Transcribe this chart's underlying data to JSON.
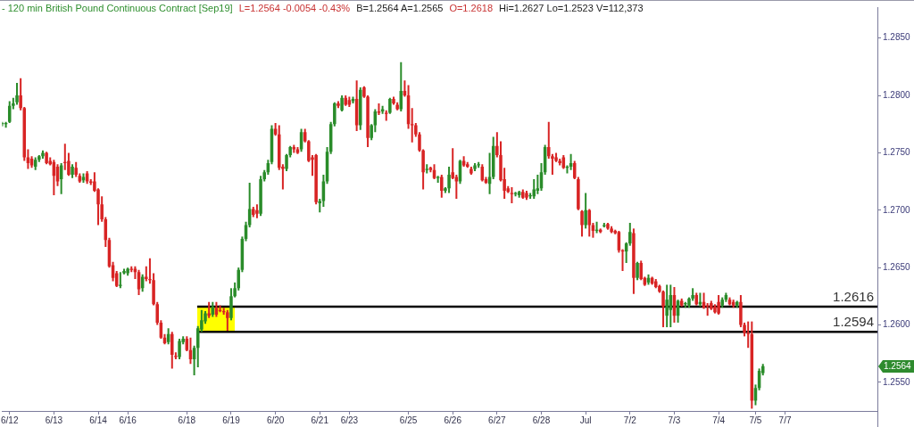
{
  "chart_data": {
    "type": "candlestick",
    "title": "- 120 min British Pound Continuous Contract [Sep19]",
    "annotations": [
      "L=1.2564 -0.0054 -0.43%",
      "B=1.2564 A=1.2565",
      "O=1.2618",
      "Hi=1.2627 Lo=1.2523 V=112,373",
      {
        "text": "1.2564",
        "y": 1.2564
      }
    ],
    "categories": [
      null,
      null,
      "6/12",
      null,
      null,
      null,
      null,
      null,
      null,
      null,
      null,
      null,
      null,
      null,
      "6/13",
      null,
      null,
      null,
      null,
      null,
      null,
      null,
      null,
      null,
      null,
      null,
      "6/14",
      null,
      null,
      null,
      null,
      null,
      null,
      null,
      "6/16",
      null,
      null,
      null,
      null,
      null,
      null,
      null,
      null,
      null,
      null,
      null,
      null,
      null,
      null,
      null,
      "6/18",
      null,
      null,
      null,
      null,
      null,
      null,
      null,
      null,
      null,
      null,
      null,
      "6/19",
      null,
      null,
      null,
      null,
      null,
      null,
      null,
      null,
      null,
      null,
      null,
      "6/20",
      null,
      null,
      null,
      null,
      null,
      null,
      null,
      null,
      null,
      null,
      null,
      "6/21",
      null,
      null,
      null,
      null,
      null,
      null,
      null,
      "6/23",
      null,
      null,
      null,
      null,
      null,
      null,
      null,
      null,
      null,
      null,
      null,
      null,
      null,
      null,
      null,
      "6/25",
      null,
      null,
      null,
      null,
      null,
      null,
      null,
      null,
      null,
      null,
      null,
      "6/26",
      null,
      null,
      null,
      null,
      null,
      null,
      null,
      null,
      null,
      null,
      null,
      "6/27",
      null,
      null,
      null,
      null,
      null,
      null,
      null,
      null,
      null,
      null,
      null,
      "6/28",
      null,
      null,
      null,
      null,
      null,
      null,
      null,
      null,
      null,
      null,
      null,
      "Jul",
      null,
      null,
      null,
      null,
      null,
      null,
      null,
      null,
      null,
      null,
      null,
      "7/2",
      null,
      null,
      null,
      null,
      null,
      null,
      null,
      null,
      null,
      null,
      null,
      "7/3",
      null,
      null,
      null,
      null,
      null,
      null,
      null,
      null,
      null,
      null,
      null,
      "7/4",
      null,
      null,
      null,
      null,
      null,
      null,
      null,
      null,
      null,
      "7/5",
      null,
      null,
      null,
      null,
      null,
      null,
      null,
      "7/7",
      null,
      null,
      null,
      null,
      null,
      null,
      null,
      null,
      null,
      null,
      null,
      null,
      null,
      null,
      null,
      null,
      null,
      null,
      null,
      null,
      null,
      null,
      null,
      null,
      null
    ],
    "ohlc": [
      [
        1.2775,
        1.2777,
        1.2773,
        1.2776
      ],
      [
        1.2775,
        1.2777,
        1.2772,
        1.2776
      ],
      [
        1.2777,
        1.2795,
        1.2776,
        1.2791
      ],
      [
        1.2791,
        1.2798,
        1.2788,
        1.2793
      ],
      [
        1.2794,
        1.2811,
        1.2792,
        1.28
      ],
      [
        1.28,
        1.2815,
        1.2787,
        1.2789
      ],
      [
        1.2789,
        1.279,
        1.2743,
        1.2746
      ],
      [
        1.2746,
        1.2753,
        1.2736,
        1.2741
      ],
      [
        1.2745,
        1.2747,
        1.2737,
        1.2739
      ],
      [
        1.2738,
        1.2746,
        1.2735,
        1.2744
      ],
      [
        1.2744,
        1.2748,
        1.2742,
        1.2747
      ],
      [
        1.2747,
        1.2752,
        1.2745,
        1.275
      ],
      [
        1.275,
        1.2751,
        1.274,
        1.2741
      ],
      [
        1.2743,
        1.2746,
        1.2739,
        1.274
      ],
      [
        1.2742,
        1.2744,
        1.2713,
        1.273
      ],
      [
        1.2738,
        1.274,
        1.2721,
        1.2725
      ],
      [
        1.2727,
        1.2741,
        1.2714,
        1.2739
      ],
      [
        1.2742,
        1.2758,
        1.2735,
        1.2741
      ],
      [
        1.2743,
        1.275,
        1.273,
        1.2731
      ],
      [
        1.2731,
        1.274,
        1.2728,
        1.2738
      ],
      [
        1.2737,
        1.2742,
        1.2729,
        1.2731
      ],
      [
        1.273,
        1.2732,
        1.2724,
        1.2725
      ],
      [
        1.2726,
        1.2732,
        1.2724,
        1.2729
      ],
      [
        1.2732,
        1.2734,
        1.2723,
        1.2725
      ],
      [
        1.2725,
        1.2727,
        1.2722,
        1.2724
      ],
      [
        1.2725,
        1.2733,
        1.2716,
        1.2717
      ],
      [
        1.2718,
        1.2719,
        1.2687,
        1.2705
      ],
      [
        1.2705,
        1.2712,
        1.269,
        1.2692
      ],
      [
        1.2692,
        1.2694,
        1.2668,
        1.2674
      ],
      [
        1.2674,
        1.2676,
        1.265,
        1.2651
      ],
      [
        1.2652,
        1.2655,
        1.2638,
        1.2641
      ],
      [
        1.2645,
        1.2647,
        1.2633,
        1.2634
      ],
      [
        1.2634,
        1.2646,
        1.2632,
        1.2635
      ],
      [
        1.2645,
        1.2649,
        1.2644,
        1.2647
      ],
      [
        1.2645,
        1.265,
        1.2643,
        1.2649
      ],
      [
        1.2649,
        1.2651,
        1.2646,
        1.2648
      ],
      [
        1.2649,
        1.2651,
        1.264,
        1.2646
      ],
      [
        1.2646,
        1.2648,
        1.2626,
        1.2631
      ],
      [
        1.2632,
        1.2644,
        1.2629,
        1.2642
      ],
      [
        1.2642,
        1.2651,
        1.2638,
        1.264
      ],
      [
        1.264,
        1.2658,
        1.2636,
        1.2639
      ],
      [
        1.2639,
        1.2645,
        1.2617,
        1.2618
      ],
      [
        1.2618,
        1.262,
        1.26,
        1.2602
      ],
      [
        1.2602,
        1.2604,
        1.2588,
        1.2589
      ],
      [
        1.2589,
        1.2592,
        1.2583,
        1.2584
      ],
      [
        1.2585,
        1.2597,
        1.2583,
        1.2592
      ],
      [
        1.2592,
        1.2594,
        1.2562,
        1.2574
      ],
      [
        1.2573,
        1.2576,
        1.257,
        1.2572
      ],
      [
        1.2572,
        1.2588,
        1.257,
        1.2586
      ],
      [
        1.2585,
        1.259,
        1.2583,
        1.2588
      ],
      [
        1.2588,
        1.259,
        1.2577,
        1.2578
      ],
      [
        1.2578,
        1.2589,
        1.2566,
        1.257
      ],
      [
        1.257,
        1.2582,
        1.2556,
        1.258
      ],
      [
        1.258,
        1.2599,
        1.2563,
        1.2597
      ],
      [
        1.2596,
        1.2613,
        1.2594,
        1.2604
      ],
      [
        1.2603,
        1.2612,
        1.2601,
        1.261
      ],
      [
        1.261,
        1.262,
        1.2606,
        1.2608
      ],
      [
        1.2609,
        1.262,
        1.2607,
        1.2616
      ],
      [
        1.2615,
        1.262,
        1.2607,
        1.2609
      ],
      [
        1.2613,
        1.2617,
        1.2611,
        1.2612
      ],
      [
        1.2612,
        1.2615,
        1.2609,
        1.2611
      ],
      [
        1.2611,
        1.2613,
        1.2595,
        1.2606
      ],
      [
        1.2606,
        1.2632,
        1.2604,
        1.2625
      ],
      [
        1.2625,
        1.2637,
        1.2624,
        1.2632
      ],
      [
        1.2632,
        1.265,
        1.263,
        1.2648
      ],
      [
        1.2648,
        1.2677,
        1.2646,
        1.2675
      ],
      [
        1.2675,
        1.269,
        1.2673,
        1.2687
      ],
      [
        1.2687,
        1.2724,
        1.2685,
        1.2701
      ],
      [
        1.2701,
        1.2703,
        1.2694,
        1.2696
      ],
      [
        1.27,
        1.2705,
        1.2693,
        1.2697
      ],
      [
        1.2697,
        1.273,
        1.2695,
        1.2727
      ],
      [
        1.2727,
        1.2735,
        1.2725,
        1.2733
      ],
      [
        1.2733,
        1.2744,
        1.2731,
        1.2741
      ],
      [
        1.2742,
        1.2774,
        1.274,
        1.2771
      ],
      [
        1.2771,
        1.2776,
        1.2765,
        1.2766
      ],
      [
        1.2766,
        1.2774,
        1.2735,
        1.2737
      ],
      [
        1.2738,
        1.274,
        1.2718,
        1.2736
      ],
      [
        1.2736,
        1.2749,
        1.2734,
        1.2748
      ],
      [
        1.2748,
        1.2756,
        1.2746,
        1.2755
      ],
      [
        1.2755,
        1.2757,
        1.275,
        1.2753
      ],
      [
        1.2753,
        1.2755,
        1.2749,
        1.275
      ],
      [
        1.2753,
        1.2771,
        1.2751,
        1.2768
      ],
      [
        1.2768,
        1.2771,
        1.2759,
        1.276
      ],
      [
        1.276,
        1.2761,
        1.2742,
        1.2743
      ],
      [
        1.2746,
        1.2748,
        1.273,
        1.2744
      ],
      [
        1.2748,
        1.2749,
        1.2705,
        1.2707
      ],
      [
        1.2706,
        1.271,
        1.2698,
        1.2708
      ],
      [
        1.2708,
        1.2731,
        1.2703,
        1.2725
      ],
      [
        1.2725,
        1.2755,
        1.2723,
        1.2751
      ],
      [
        1.2751,
        1.2777,
        1.2749,
        1.2775
      ],
      [
        1.2775,
        1.2794,
        1.2773,
        1.2793
      ],
      [
        1.2793,
        1.2795,
        1.2789,
        1.2791
      ],
      [
        1.2787,
        1.28,
        1.2786,
        1.2798
      ],
      [
        1.2798,
        1.28,
        1.2791,
        1.2792
      ],
      [
        1.2796,
        1.2799,
        1.279,
        1.2792
      ],
      [
        1.2795,
        1.2799,
        1.2793,
        1.2797
      ],
      [
        1.2797,
        1.2813,
        1.2769,
        1.2774
      ],
      [
        1.2774,
        1.2807,
        1.277,
        1.2805
      ],
      [
        1.2807,
        1.2808,
        1.2798,
        1.2799
      ],
      [
        1.2799,
        1.28,
        1.2755,
        1.2763
      ],
      [
        1.2763,
        1.2775,
        1.2761,
        1.2774
      ],
      [
        1.2774,
        1.2788,
        1.2768,
        1.2786
      ],
      [
        1.2786,
        1.2793,
        1.2783,
        1.2785
      ],
      [
        1.2786,
        1.2791,
        1.2784,
        1.2788
      ],
      [
        1.2785,
        1.2787,
        1.2778,
        1.2784
      ],
      [
        1.2785,
        1.2798,
        1.2784,
        1.2797
      ],
      [
        1.2797,
        1.2799,
        1.2792,
        1.2793
      ],
      [
        1.2792,
        1.2794,
        1.2787,
        1.2788
      ],
      [
        1.2788,
        1.2829,
        1.2786,
        1.2804
      ],
      [
        1.2804,
        1.2813,
        1.2799,
        1.28
      ],
      [
        1.28,
        1.2809,
        1.2771,
        1.2775
      ],
      [
        1.2775,
        1.2789,
        1.2759,
        1.2774
      ],
      [
        1.2774,
        1.2776,
        1.2764,
        1.2766
      ],
      [
        1.2766,
        1.2768,
        1.2751,
        1.2752
      ],
      [
        1.2752,
        1.2753,
        1.2718,
        1.2733
      ],
      [
        1.2735,
        1.274,
        1.2732,
        1.2736
      ],
      [
        1.2737,
        1.2738,
        1.2733,
        1.2735
      ],
      [
        1.2735,
        1.274,
        1.2727,
        1.2728
      ],
      [
        1.2728,
        1.273,
        1.2724,
        1.2729
      ],
      [
        1.2729,
        1.2731,
        1.2711,
        1.2717
      ],
      [
        1.2717,
        1.272,
        1.2715,
        1.2719
      ],
      [
        1.2719,
        1.2738,
        1.2715,
        1.2731
      ],
      [
        1.2733,
        1.2754,
        1.2727,
        1.2728
      ],
      [
        1.2729,
        1.2731,
        1.271,
        1.2725
      ],
      [
        1.2725,
        1.2744,
        1.2723,
        1.2743
      ],
      [
        1.2743,
        1.2747,
        1.2738,
        1.2739
      ],
      [
        1.274,
        1.2742,
        1.2737,
        1.2738
      ],
      [
        1.2736,
        1.2738,
        1.2731,
        1.2732
      ],
      [
        1.2736,
        1.2741,
        1.2734,
        1.2739
      ],
      [
        1.2739,
        1.2742,
        1.2737,
        1.274
      ],
      [
        1.2738,
        1.274,
        1.2725,
        1.2726
      ],
      [
        1.2727,
        1.2729,
        1.2723,
        1.2724
      ],
      [
        1.2723,
        1.275,
        1.2714,
        1.2729
      ],
      [
        1.2729,
        1.2764,
        1.2727,
        1.2756
      ],
      [
        1.2756,
        1.2768,
        1.2746,
        1.2748
      ],
      [
        1.2748,
        1.276,
        1.2725,
        1.2726
      ],
      [
        1.2727,
        1.2737,
        1.271,
        1.2717
      ],
      [
        1.2719,
        1.2721,
        1.2715,
        1.2716
      ],
      [
        1.2715,
        1.272,
        1.2706,
        1.2714
      ],
      [
        1.2714,
        1.2716,
        1.2712,
        1.2715
      ],
      [
        1.2713,
        1.2717,
        1.2711,
        1.2716
      ],
      [
        1.2716,
        1.2718,
        1.271,
        1.2711
      ],
      [
        1.2715,
        1.2717,
        1.2709,
        1.2711
      ],
      [
        1.2712,
        1.2715,
        1.271,
        1.2713
      ],
      [
        1.2712,
        1.2727,
        1.271,
        1.2718
      ],
      [
        1.2717,
        1.2731,
        1.2714,
        1.2719
      ],
      [
        1.2719,
        1.2741,
        1.2717,
        1.2733
      ],
      [
        1.2733,
        1.2757,
        1.2731,
        1.2755
      ],
      [
        1.2755,
        1.2777,
        1.2745,
        1.2747
      ],
      [
        1.2747,
        1.2749,
        1.2731,
        1.2745
      ],
      [
        1.2746,
        1.275,
        1.2742,
        1.2743
      ],
      [
        1.2743,
        1.2745,
        1.2739,
        1.2741
      ],
      [
        1.2746,
        1.2748,
        1.2736,
        1.2737
      ],
      [
        1.2737,
        1.2739,
        1.2732,
        1.2738
      ],
      [
        1.2738,
        1.2749,
        1.2735,
        1.2741
      ],
      [
        1.2741,
        1.2743,
        1.2727,
        1.2728
      ],
      [
        1.2727,
        1.2729,
        1.27,
        1.2701
      ],
      [
        1.2699,
        1.27,
        1.2677,
        1.2687
      ],
      [
        1.2687,
        1.2715,
        1.2684,
        1.27
      ],
      [
        1.27,
        1.2701,
        1.2677,
        1.2687
      ],
      [
        1.2687,
        1.2689,
        1.2676,
        1.2682
      ],
      [
        1.2682,
        1.269,
        1.268,
        1.2683
      ],
      [
        1.2683,
        1.2684,
        1.268,
        1.2681
      ],
      [
        1.2686,
        1.2689,
        1.2685,
        1.2687
      ],
      [
        1.2688,
        1.2689,
        1.2683,
        1.2684
      ],
      [
        1.2684,
        1.2686,
        1.268,
        1.2681
      ],
      [
        1.2682,
        1.2683,
        1.2679,
        1.268
      ],
      [
        1.2681,
        1.2682,
        1.2663,
        1.2665
      ],
      [
        1.2665,
        1.2666,
        1.2647,
        1.2664
      ],
      [
        1.2664,
        1.2672,
        1.2654,
        1.2671
      ],
      [
        1.2671,
        1.2689,
        1.2669,
        1.2681
      ],
      [
        1.268,
        1.2684,
        1.2627,
        1.2641
      ],
      [
        1.2641,
        1.2655,
        1.2639,
        1.2654
      ],
      [
        1.2654,
        1.2656,
        1.2639,
        1.264
      ],
      [
        1.2641,
        1.2642,
        1.2634,
        1.2635
      ],
      [
        1.2637,
        1.2644,
        1.2635,
        1.2641
      ],
      [
        1.2641,
        1.2642,
        1.2635,
        1.2636
      ],
      [
        1.2638,
        1.264,
        1.2632,
        1.2633
      ],
      [
        1.2634,
        1.2635,
        1.2628,
        1.2629
      ],
      [
        1.2629,
        1.263,
        1.2598,
        1.2616
      ],
      [
        1.2608,
        1.2635,
        1.2598,
        1.2622
      ],
      [
        1.2613,
        1.2635,
        1.2598,
        1.2626
      ],
      [
        1.2626,
        1.2633,
        1.2602,
        1.2608
      ],
      [
        1.2608,
        1.2622,
        1.2602,
        1.2621
      ],
      [
        1.2621,
        1.2623,
        1.2616,
        1.2617
      ],
      [
        1.2618,
        1.262,
        1.2615,
        1.2619
      ],
      [
        1.2617,
        1.2624,
        1.2615,
        1.2623
      ],
      [
        1.2623,
        1.2632,
        1.2621,
        1.2626
      ],
      [
        1.2626,
        1.2628,
        1.2617,
        1.2618
      ],
      [
        1.2618,
        1.2628,
        1.2616,
        1.262
      ],
      [
        1.262,
        1.2628,
        1.2614,
        1.2615
      ],
      [
        1.2617,
        1.2619,
        1.2608,
        1.2616
      ],
      [
        1.2619,
        1.2621,
        1.2613,
        1.2614
      ],
      [
        1.2616,
        1.2618,
        1.261,
        1.2611
      ],
      [
        1.262,
        1.2626,
        1.2609,
        1.261
      ],
      [
        1.2617,
        1.2624,
        1.2615,
        1.2622
      ],
      [
        1.2622,
        1.2628,
        1.262,
        1.2626
      ],
      [
        1.2622,
        1.2624,
        1.2617,
        1.2618
      ],
      [
        1.262,
        1.2622,
        1.2615,
        1.2617
      ],
      [
        1.2617,
        1.2621,
        1.2615,
        1.262
      ],
      [
        1.262,
        1.2626,
        1.2598,
        1.26
      ],
      [
        1.26,
        1.2602,
        1.259,
        1.2593
      ],
      [
        1.2593,
        1.2603,
        1.258,
        1.2592
      ],
      [
        1.2592,
        1.2603,
        1.2527,
        1.2534
      ],
      [
        1.2534,
        1.2548,
        1.253,
        1.2545
      ],
      [
        1.2545,
        1.2562,
        1.2543,
        1.256
      ],
      [
        1.2558,
        1.2566,
        1.2556,
        1.2564
      ],
      null,
      null,
      null,
      null,
      null,
      null,
      null,
      null,
      null,
      null,
      null,
      null,
      null,
      null,
      null,
      null,
      null,
      null,
      null,
      null,
      null,
      null,
      null,
      null,
      null,
      null,
      null,
      null,
      null,
      null,
      null
    ],
    "colors": [
      "#2a8c2a",
      "#2a8c2a",
      "#2a8c2a",
      "#2a8c2a",
      "#2a8c2a",
      "#d82424",
      "#d82424",
      "#d82424",
      "#d82424",
      "#2a8c2a",
      "#2a8c2a",
      "#2a8c2a",
      "#d82424",
      "#d82424",
      "#d82424",
      "#d82424",
      "#2a8c2a",
      "#d82424",
      "#d82424",
      "#2a8c2a",
      "#d82424",
      "#d82424",
      "#2a8c2a",
      "#d82424",
      "#d82424",
      "#d82424",
      "#d82424",
      "#d82424",
      "#d82424",
      "#d82424",
      "#d82424",
      "#d82424",
      "#2a8c2a",
      "#2a8c2a",
      "#2a8c2a",
      "#d82424",
      "#d82424",
      "#d82424",
      "#2a8c2a",
      "#d82424",
      "#d82424",
      "#d82424",
      "#d82424",
      "#d82424",
      "#d82424",
      "#2a8c2a",
      "#d82424",
      "#d82424",
      "#2a8c2a",
      "#2a8c2a",
      "#d82424",
      "#d82424",
      "#2a8c2a",
      "#2a8c2a",
      "#2a8c2a",
      "#2a8c2a",
      "#d82424",
      "#2a8c2a",
      "#d82424",
      "#d82424",
      "#d82424",
      "#d82424",
      "#2a8c2a",
      "#2a8c2a",
      "#2a8c2a",
      "#2a8c2a",
      "#2a8c2a",
      "#2a8c2a",
      "#d82424",
      "#d82424",
      "#2a8c2a",
      "#2a8c2a",
      "#2a8c2a",
      "#2a8c2a",
      "#d82424",
      "#d82424",
      "#d82424",
      "#2a8c2a",
      "#2a8c2a",
      "#d82424",
      "#d82424",
      "#2a8c2a",
      "#d82424",
      "#d82424",
      "#d82424",
      "#d82424",
      "#2a8c2a",
      "#2a8c2a",
      "#2a8c2a",
      "#2a8c2a",
      "#2a8c2a",
      "#d82424",
      "#2a8c2a",
      "#d82424",
      "#d82424",
      "#2a8c2a",
      "#d82424",
      "#2a8c2a",
      "#d82424",
      "#d82424",
      "#2a8c2a",
      "#2a8c2a",
      "#d82424",
      "#2a8c2a",
      "#d82424",
      "#2a8c2a",
      "#d82424",
      "#d82424",
      "#2a8c2a",
      "#d82424",
      "#d82424",
      "#d82424",
      "#d82424",
      "#d82424",
      "#d82424",
      "#2a8c2a",
      "#d82424",
      "#d82424",
      "#2a8c2a",
      "#d82424",
      "#2a8c2a",
      "#2a8c2a",
      "#d82424",
      "#d82424",
      "#2a8c2a",
      "#d82424",
      "#d82424",
      "#d82424",
      "#2a8c2a",
      "#2a8c2a",
      "#d82424",
      "#d82424",
      "#2a8c2a",
      "#2a8c2a",
      "#d82424",
      "#d82424",
      "#d82424",
      "#d82424",
      "#d82424",
      "#2a8c2a",
      "#2a8c2a",
      "#d82424",
      "#d82424",
      "#2a8c2a",
      "#2a8c2a",
      "#2a8c2a",
      "#2a8c2a",
      "#2a8c2a",
      "#d82424",
      "#d82424",
      "#d82424",
      "#d82424",
      "#d82424",
      "#2a8c2a",
      "#2a8c2a",
      "#d82424",
      "#d82424",
      "#d82424",
      "#2a8c2a",
      "#d82424",
      "#d82424",
      "#2a8c2a",
      "#d82424",
      "#2a8c2a",
      "#d82424",
      "#d82424",
      "#d82424",
      "#d82424",
      "#d82424",
      "#2a8c2a",
      "#2a8c2a",
      "#d82424",
      "#2a8c2a",
      "#d82424",
      "#d82424",
      "#2a8c2a",
      "#d82424",
      "#d82424",
      "#d82424",
      "#d82424",
      "#2a8c2a",
      "#2a8c2a",
      "#d82424",
      "#2a8c2a",
      "#d82424",
      "#2a8c2a",
      "#2a8c2a",
      "#2a8c2a",
      "#d82424",
      "#2a8c2a",
      "#d82424",
      "#d82424",
      "#d82424",
      "#d82424",
      "#d82424",
      "#2a8c2a",
      "#2a8c2a",
      "#d82424",
      "#d82424",
      "#2a8c2a",
      "#d82424",
      "#d82424",
      "#d82424",
      "#d82424",
      "#2a8c2a",
      "#2a8c2a",
      "#2a8c2a",
      null,
      null,
      null,
      null,
      null,
      null,
      null,
      null,
      null,
      null,
      null,
      null,
      null,
      null,
      null,
      null,
      null,
      null,
      null,
      null,
      null,
      null,
      null,
      null,
      null,
      null,
      null,
      null,
      null,
      null,
      null
    ],
    "ylim": [
      1.2525,
      1.2877
    ],
    "yticks": [
      {
        "value": 1.255,
        "label": "1.2550"
      },
      {
        "value": 1.26,
        "label": "1.2600"
      },
      {
        "value": 1.265,
        "label": "1.2650"
      },
      {
        "value": 1.27,
        "label": "1.2700"
      },
      {
        "value": 1.275,
        "label": "1.2750"
      },
      {
        "value": 1.28,
        "label": "1.2800"
      },
      {
        "value": 1.285,
        "label": "1.2850"
      }
    ],
    "ref_lines": [
      {
        "axis": "y",
        "value": 1.2616,
        "label": "1.2616",
        "color": "#000000"
      },
      {
        "axis": "y",
        "value": 1.2594,
        "label": "1.2594",
        "color": "#000000"
      }
    ]
  }
}
